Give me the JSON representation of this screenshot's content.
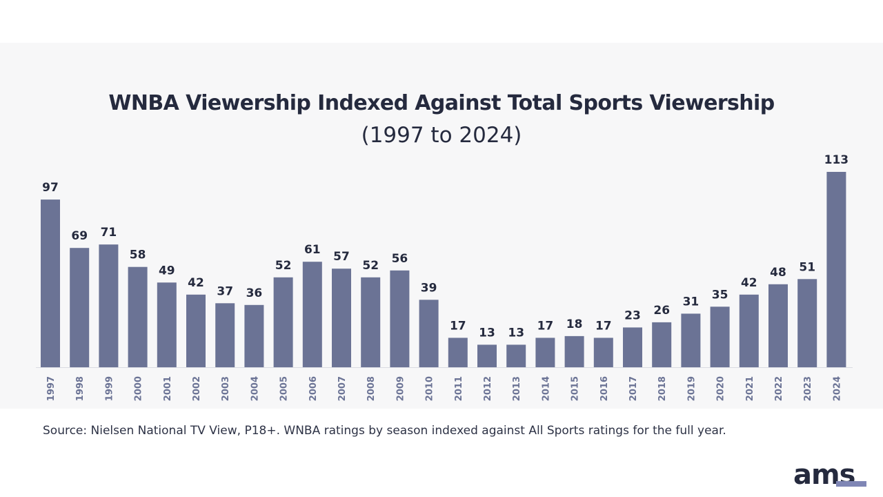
{
  "chart_data": {
    "type": "bar",
    "title": "WNBA Viewership Indexed Against Total Sports Viewership",
    "subtitle": "(1997 to 2024)",
    "categories": [
      "1997",
      "1998",
      "1999",
      "2000",
      "2001",
      "2002",
      "2003",
      "2004",
      "2005",
      "2006",
      "2007",
      "2008",
      "2009",
      "2010",
      "2011",
      "2012",
      "2013",
      "2014",
      "2015",
      "2016",
      "2017",
      "2018",
      "2019",
      "2020",
      "2021",
      "2022",
      "2023",
      "2024"
    ],
    "values": [
      97,
      69,
      71,
      58,
      49,
      42,
      37,
      36,
      52,
      61,
      57,
      52,
      56,
      39,
      17,
      13,
      13,
      17,
      18,
      17,
      23,
      26,
      31,
      35,
      42,
      48,
      51,
      113
    ],
    "xlabel": "",
    "ylabel": "",
    "ylim": [
      0,
      113
    ],
    "grid": false,
    "bar_color": "#6b7395"
  },
  "source": "Source: Nielsen National TV View, P18+. WNBA ratings by season indexed against All Sports ratings for the full year.",
  "logo": {
    "text": "ams",
    "color": "#252a3e",
    "accent": "#7f86b5"
  }
}
